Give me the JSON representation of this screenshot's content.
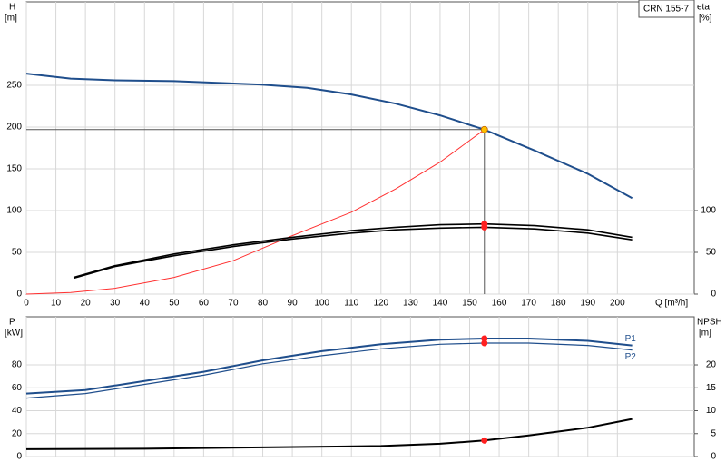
{
  "chart_data": [
    {
      "type": "line",
      "title": "CRN 155-7",
      "ylabel": "H",
      "yunit": "[m]",
      "y2label": "eta",
      "y2unit": "[%]",
      "xlabel": "Q [m³/h]",
      "xlim": [
        0,
        226
      ],
      "ylim": [
        0,
        350
      ],
      "y2lim": [
        0,
        350
      ],
      "xticks": [
        0,
        10,
        20,
        30,
        40,
        50,
        60,
        70,
        80,
        90,
        100,
        110,
        120,
        130,
        140,
        150,
        160,
        170,
        180,
        190,
        200
      ],
      "yticks": [
        0,
        50,
        100,
        150,
        200,
        250
      ],
      "y2ticks": [
        0,
        50,
        100
      ],
      "grid": true,
      "show_xtick_labels": true,
      "series": [
        {
          "color": "#1f4e8c",
          "width": 2,
          "x": [
            0,
            15,
            30,
            50,
            79,
            95,
            110,
            125,
            140,
            155,
            172,
            190,
            205
          ],
          "values": [
            264,
            258,
            256,
            255,
            251,
            247,
            239,
            228,
            214,
            197,
            172,
            144,
            115
          ]
        },
        {
          "color": "#ff3030",
          "width": 1,
          "x": [
            0,
            15,
            30,
            50,
            70,
            90,
            110,
            125,
            140,
            155
          ],
          "values": [
            0,
            2,
            7,
            20,
            40,
            70,
            98,
            126,
            158,
            197
          ]
        },
        {
          "color": "#000000",
          "width": 1.6,
          "axis": "y2",
          "x": [
            16,
            30,
            50,
            70,
            90,
            110,
            125,
            140,
            155,
            172,
            190,
            205
          ],
          "values": [
            20,
            34,
            48,
            59,
            68,
            76,
            80,
            83,
            84,
            82,
            77,
            68
          ]
        },
        {
          "color": "#000000",
          "width": 1.6,
          "axis": "y2",
          "x": [
            16,
            30,
            50,
            70,
            90,
            110,
            125,
            140,
            155,
            172,
            190,
            205
          ],
          "values": [
            19,
            33,
            46,
            57,
            66,
            73,
            77,
            79,
            80,
            78,
            73,
            65
          ]
        }
      ],
      "markers": [
        {
          "x": 155,
          "y": 197,
          "color": "#ffc000",
          "crosshair": true
        },
        {
          "x": 155,
          "y": 84,
          "axis": "y2",
          "color": "#ff2020"
        },
        {
          "x": 155,
          "y": 80,
          "axis": "y2",
          "color": "#ff2020"
        }
      ]
    },
    {
      "type": "line",
      "ylabel": "P",
      "yunit": "[kW]",
      "y2label": "NPSH",
      "y2unit": "[m]",
      "xlim": [
        0,
        226
      ],
      "ylim": [
        0,
        122
      ],
      "y2lim": [
        0,
        30.5
      ],
      "xticks": [
        0,
        10,
        20,
        30,
        40,
        50,
        60,
        70,
        80,
        90,
        100,
        110,
        120,
        130,
        140,
        150,
        160,
        170,
        180,
        190,
        200
      ],
      "yticks": [
        0,
        20,
        40,
        60,
        80
      ],
      "y2ticks": [
        0,
        5,
        10,
        15,
        20
      ],
      "grid": true,
      "show_xtick_labels": false,
      "series": [
        {
          "name": "P1",
          "color": "#1f4e8c",
          "width": 2,
          "x": [
            0,
            20,
            40,
            60,
            80,
            100,
            120,
            140,
            155,
            170,
            190,
            205
          ],
          "values": [
            55,
            58,
            66,
            74,
            84,
            92,
            98,
            102,
            103,
            103,
            101,
            97
          ]
        },
        {
          "name": "P2",
          "color": "#1f4e8c",
          "width": 1.2,
          "x": [
            0,
            20,
            40,
            60,
            80,
            100,
            120,
            140,
            155,
            170,
            190,
            205
          ],
          "values": [
            51,
            55,
            63,
            71,
            81,
            88,
            94,
            98,
            99,
            99,
            97,
            93
          ]
        },
        {
          "color": "#000000",
          "width": 2,
          "axis": "y2",
          "x": [
            0,
            40,
            80,
            120,
            140,
            155,
            170,
            190,
            205
          ],
          "values": [
            1.6,
            1.7,
            2.0,
            2.3,
            2.8,
            3.5,
            4.6,
            6.3,
            8.2
          ]
        }
      ],
      "markers": [
        {
          "x": 155,
          "y": 103,
          "color": "#ff2020"
        },
        {
          "x": 155,
          "y": 99,
          "color": "#ff2020"
        },
        {
          "x": 155,
          "y": 3.5,
          "axis": "y2",
          "color": "#ff2020"
        }
      ]
    }
  ]
}
